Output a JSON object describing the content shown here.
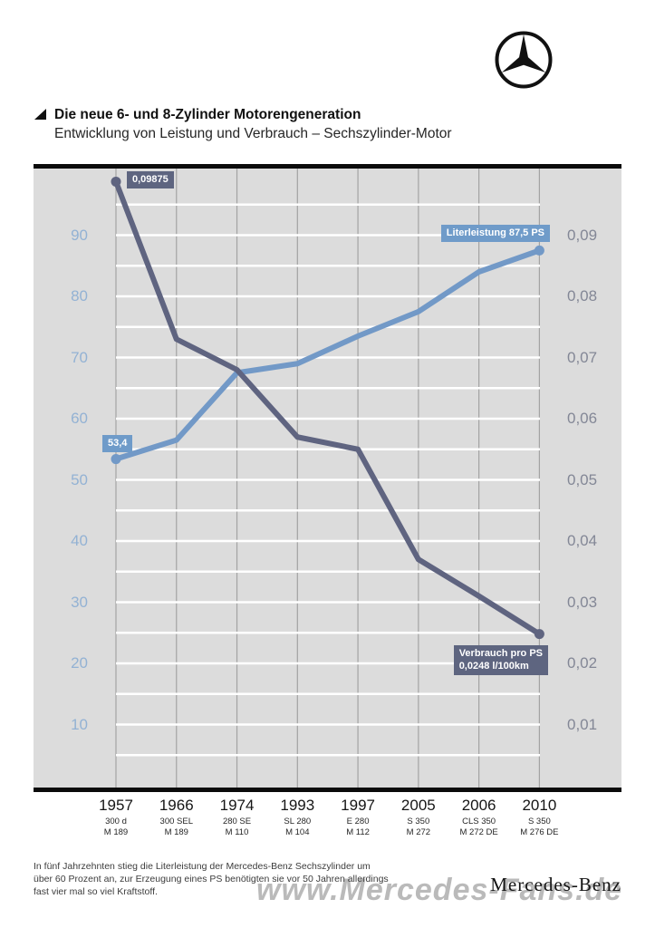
{
  "header": {
    "title": "Die neue 6- und 8-Zylinder Motorengeneration",
    "subtitle": "Entwicklung von Leistung und Verbrauch – Sechszylinder-Motor"
  },
  "chart_data": {
    "type": "line",
    "title": "Entwicklung von Leistung und Verbrauch – Sechszylinder-Motor",
    "plot_background": "#dcdcdc",
    "grid": {
      "horizontal_color": "#ffffff",
      "vertical_color": "#a3a3a3"
    },
    "x_categories": [
      {
        "year": "1957",
        "model": "300 d",
        "engine": "M 189"
      },
      {
        "year": "1966",
        "model": "300 SEL",
        "engine": "M 189"
      },
      {
        "year": "1974",
        "model": "280 SE",
        "engine": "M 110"
      },
      {
        "year": "1993",
        "model": "SL 280",
        "engine": "M 104"
      },
      {
        "year": "1997",
        "model": "E 280",
        "engine": "M 112"
      },
      {
        "year": "2005",
        "model": "S 350",
        "engine": "M 272"
      },
      {
        "year": "2006",
        "model": "CLS 350",
        "engine": "M 272 DE"
      },
      {
        "year": "2010",
        "model": "S 350",
        "engine": "M 276 DE"
      }
    ],
    "left_axis": {
      "ticks": [
        90,
        80,
        70,
        60,
        50,
        40,
        30,
        20,
        10
      ],
      "range": [
        0,
        100
      ],
      "color": "#93b2d4"
    },
    "right_axis": {
      "ticks": [
        "0,09",
        "0,08",
        "0,07",
        "0,06",
        "0,05",
        "0,04",
        "0,03",
        "0,02",
        "0,01"
      ],
      "range": [
        0,
        0.1
      ],
      "color": "#838796"
    },
    "series": [
      {
        "name": "Literleistung",
        "unit": "PS",
        "color": "#7299c7",
        "badge_color": "#6f9bc9",
        "values": [
          53.4,
          56.5,
          67.5,
          69,
          73.5,
          77.5,
          84,
          87.5
        ],
        "start_label": "53,4",
        "end_label": "Literleistung 87,5 PS"
      },
      {
        "name": "Verbrauch pro PS",
        "unit": "l/100km",
        "color": "#5f6480",
        "badge_color": "#5e6580",
        "scale": 1000,
        "values": [
          0.09875,
          0.073,
          0.068,
          0.057,
          0.055,
          0.037,
          0.031,
          0.0248
        ],
        "start_label": "0,09875",
        "end_label_line1": "Verbrauch pro PS",
        "end_label_line2": "0,0248 l/100km"
      }
    ]
  },
  "footer": {
    "caption_lines": [
      "In fünf Jahrzehnten stieg die Literleistung der Mercedes-Benz Sechszylinder um",
      "über 60 Prozent an, zur Erzeugung eines PS benötigten sie vor 50 Jahren allerdings",
      "fast vier mal so viel Kraftstoff."
    ],
    "wordmark": "Mercedes-Benz",
    "watermark": "www.Mercedes-Fans.de"
  }
}
